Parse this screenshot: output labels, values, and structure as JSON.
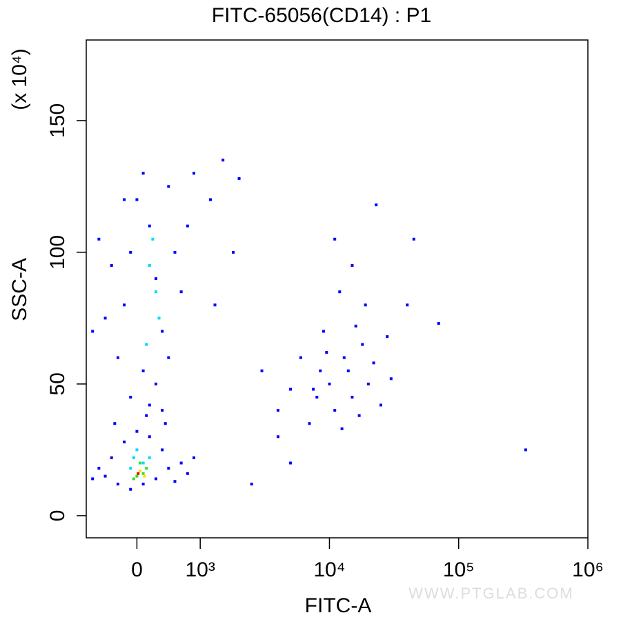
{
  "chart_data": {
    "type": "scatter",
    "title": "FITC-65056(CD14) : P1",
    "x_label": "FITC-A",
    "y_label": "SSC-A",
    "y_unit": "(x 10⁴)",
    "watermark": "WWW.PTGLAB.COM",
    "x_scale": "biexponential",
    "xlim": [
      -800,
      1000000
    ],
    "xticks": [
      0,
      {
        "value": 1000,
        "label": "10³"
      },
      {
        "value": 10000,
        "label": "10⁴"
      },
      {
        "value": 100000,
        "label": "10⁵"
      },
      {
        "value": 1000000,
        "label": "10⁶"
      }
    ],
    "ylim": [
      -8.4,
      180.6
    ],
    "yticks": [
      0,
      50,
      100,
      150
    ],
    "series": [
      {
        "color": "#0000ff",
        "x": [
          -500,
          -400,
          -300,
          -200,
          -100,
          0,
          100,
          200,
          300,
          400,
          500,
          600,
          700,
          800,
          -600,
          -700,
          900,
          -350,
          450,
          150,
          -300,
          -200,
          -100,
          0,
          100,
          200,
          300,
          400,
          500,
          600,
          700,
          800,
          -200,
          -400,
          -500,
          900,
          1200,
          1500,
          2000,
          1800,
          1300,
          100,
          300,
          500,
          -100,
          200,
          400,
          -600,
          -700,
          3000,
          4000,
          5000,
          6000,
          7000,
          8000,
          9000,
          10000,
          11000,
          12000,
          13000,
          14000,
          15000,
          16000,
          17000,
          18000,
          20000,
          22000,
          25000,
          28000,
          30000,
          11000,
          15000,
          9500,
          12500,
          8500,
          7500,
          19000,
          23000,
          45000,
          70000,
          330000,
          2500,
          5000,
          4000,
          40000
        ],
        "y": [
          15,
          22,
          12,
          28,
          10,
          32,
          12,
          30,
          14,
          25,
          18,
          13,
          20,
          16,
          18,
          14,
          22,
          35,
          35,
          38,
          60,
          80,
          100,
          120,
          130,
          110,
          90,
          70,
          125,
          100,
          85,
          110,
          120,
          95,
          75,
          130,
          120,
          135,
          128,
          100,
          80,
          55,
          50,
          60,
          45,
          42,
          40,
          105,
          70,
          55,
          40,
          48,
          60,
          35,
          45,
          70,
          50,
          40,
          85,
          60,
          55,
          45,
          72,
          38,
          65,
          50,
          58,
          42,
          68,
          52,
          105,
          95,
          62,
          33,
          55,
          48,
          80,
          118,
          105,
          73,
          25,
          12,
          20,
          30,
          80
        ]
      },
      {
        "color": "#00d8ff",
        "x": [
          0,
          100,
          -100,
          200,
          300,
          200,
          350,
          250,
          150,
          -50
        ],
        "y": [
          25,
          20,
          18,
          22,
          85,
          95,
          75,
          105,
          65,
          22
        ]
      },
      {
        "color": "#30e030",
        "x": [
          0,
          150,
          50,
          -50,
          100
        ],
        "y": [
          15,
          18,
          20,
          14,
          16
        ]
      },
      {
        "color": "#ffe000",
        "x": [
          50,
          120
        ],
        "y": [
          17,
          15
        ]
      },
      {
        "color": "#ff0000",
        "x": [
          20
        ],
        "y": [
          16
        ]
      }
    ]
  }
}
